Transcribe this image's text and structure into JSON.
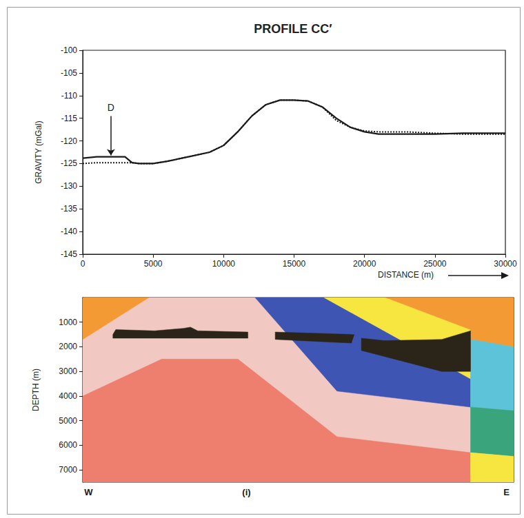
{
  "chart_data": [
    {
      "type": "line",
      "title": "PROFILE CC′",
      "xlabel": "DISTANCE (m)",
      "ylabel": "GRAVITY (mGal)",
      "x": [
        0,
        1000,
        2000,
        3000,
        3500,
        4000,
        5000,
        6000,
        7500,
        9000,
        10000,
        11000,
        12000,
        13000,
        14000,
        15000,
        16000,
        17000,
        18000,
        19000,
        20000,
        21000,
        23000,
        25000,
        27000,
        30000
      ],
      "series": [
        {
          "color": "#1a1a1a",
          "line_style": "solid",
          "values": [
            -123.8,
            -123.5,
            -123.5,
            -123.5,
            -124.8,
            -125,
            -125,
            -124.5,
            -123.5,
            -122.5,
            -121,
            -118,
            -114.5,
            -112,
            -111,
            -111,
            -111.2,
            -112.5,
            -115,
            -117,
            -118,
            -118.5,
            -118.5,
            -118.5,
            -118.3,
            -118.3
          ]
        },
        {
          "color": "#1a1a1a",
          "line_style": "dotted",
          "values": [
            -125,
            -124.8,
            -124.8,
            -124.8,
            -124.8,
            -125,
            -125,
            -124.5,
            -123.5,
            -122.5,
            -121,
            -118,
            -114.5,
            -112,
            -111,
            -111,
            -111.2,
            -112.5,
            -115.5,
            -117,
            -117.8,
            -118,
            -118,
            -118.3,
            -118.5,
            -118.5
          ]
        }
      ],
      "annotations": [
        {
          "text": "D",
          "x": 2000,
          "y": -114.5,
          "arrow_end": -123.2
        }
      ],
      "xlim": [
        0,
        30000
      ],
      "ylim": [
        -145,
        -100
      ],
      "xticks": [
        0,
        5000,
        10000,
        15000,
        20000,
        25000,
        30000
      ],
      "yticks": [
        -145,
        -140,
        -135,
        -130,
        -125,
        -120,
        -115,
        -110,
        -105,
        -100
      ],
      "grid": false
    },
    {
      "type": "cross_section",
      "ylabel": "DEPTH (m)",
      "xlim": [
        0,
        30000
      ],
      "ylim": [
        0,
        7500
      ],
      "yticks": [
        1000,
        2000,
        3000,
        4000,
        5000,
        6000,
        7000
      ],
      "xticks": [
        {
          "value": 400,
          "label": "W"
        },
        {
          "value": 11400,
          "label": "(i)"
        },
        {
          "value": 29500,
          "label": "E"
        }
      ],
      "layers": [
        {
          "color": "#f2c9c2",
          "points": [
            [
              0,
              0
            ],
            [
              30000,
              0
            ],
            [
              30000,
              7500
            ],
            [
              0,
              7500
            ]
          ]
        },
        {
          "color": "#ee7f6f",
          "points": [
            [
              0,
              4000
            ],
            [
              5500,
              2500
            ],
            [
              10800,
              2500
            ],
            [
              17700,
              5650
            ],
            [
              27000,
              6300
            ],
            [
              27000,
              7500
            ],
            [
              0,
              7500
            ]
          ]
        },
        {
          "color": "#f39a35",
          "points": [
            [
              0,
              0
            ],
            [
              4600,
              0
            ],
            [
              0,
              1700
            ]
          ]
        },
        {
          "color": "#3f55b3",
          "points": [
            [
              12000,
              0
            ],
            [
              16800,
              0
            ],
            [
              27000,
              3300
            ],
            [
              27000,
              4450
            ],
            [
              17700,
              3800
            ]
          ]
        },
        {
          "color": "#f7e640",
          "points": [
            [
              16800,
              0
            ],
            [
              21100,
              0
            ],
            [
              27000,
              1300
            ],
            [
              27000,
              3300
            ]
          ]
        },
        {
          "color": "#f39a35",
          "points": [
            [
              21100,
              0
            ],
            [
              30000,
              0
            ],
            [
              30000,
              2000
            ],
            [
              27000,
              1700
            ],
            [
              27000,
              1300
            ]
          ]
        },
        {
          "color": "#5cc3d8",
          "points": [
            [
              27000,
              1700
            ],
            [
              30000,
              2000
            ],
            [
              30000,
              4600
            ],
            [
              27000,
              4450
            ]
          ]
        },
        {
          "color": "#3aa57c",
          "points": [
            [
              27000,
              4450
            ],
            [
              30000,
              4600
            ],
            [
              30000,
              6450
            ],
            [
              27000,
              6300
            ]
          ]
        },
        {
          "color": "#f7e640",
          "points": [
            [
              27000,
              6300
            ],
            [
              30000,
              6450
            ],
            [
              30000,
              7500
            ],
            [
              27000,
              7500
            ]
          ]
        },
        {
          "color": "#2b2418",
          "points": [
            [
              2100,
              1500
            ],
            [
              2300,
              1300
            ],
            [
              5000,
              1350
            ],
            [
              7000,
              1250
            ],
            [
              7500,
              1200
            ],
            [
              8000,
              1350
            ],
            [
              11500,
              1400
            ],
            [
              11500,
              1650
            ],
            [
              2100,
              1650
            ]
          ]
        },
        {
          "color": "#2b2418",
          "points": [
            [
              13400,
              1400
            ],
            [
              18900,
              1500
            ],
            [
              18700,
              1850
            ],
            [
              13400,
              1700
            ]
          ]
        },
        {
          "color": "#2b2418",
          "points": [
            [
              19400,
              1650
            ],
            [
              21000,
              1750
            ],
            [
              25000,
              1700
            ],
            [
              27000,
              1350
            ],
            [
              27000,
              3000
            ],
            [
              25000,
              3000
            ],
            [
              19400,
              2150
            ]
          ]
        }
      ]
    }
  ]
}
